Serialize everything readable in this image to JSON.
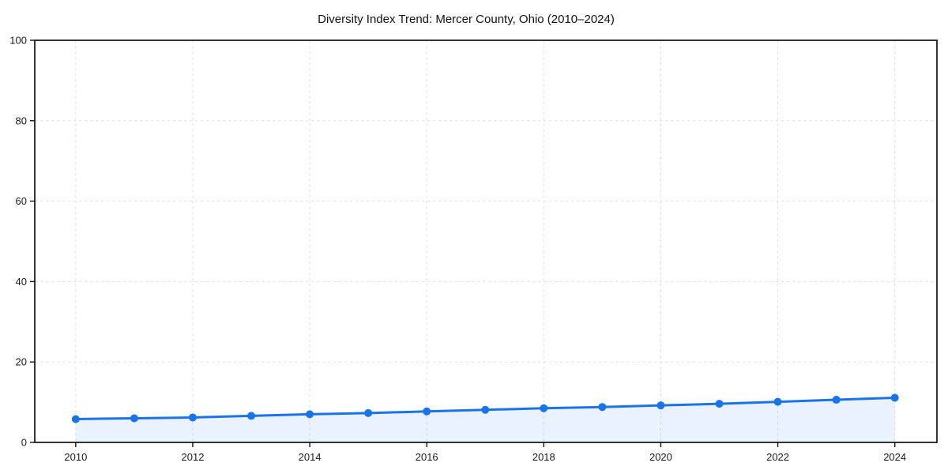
{
  "figure": {
    "background_color": "#ffffff"
  },
  "chart_data": {
    "type": "line",
    "title": "Diversity Index Trend: Mercer County, Ohio (2010–2024)",
    "x": [
      2010,
      2011,
      2012,
      2013,
      2014,
      2015,
      2016,
      2017,
      2018,
      2019,
      2020,
      2021,
      2022,
      2023,
      2024
    ],
    "values": [
      5.8,
      6.0,
      6.2,
      6.6,
      7.0,
      7.3,
      7.7,
      8.1,
      8.5,
      8.8,
      9.2,
      9.6,
      10.1,
      10.6,
      11.1
    ],
    "xlabel": "",
    "ylabel": "",
    "xticks": [
      2010,
      2012,
      2014,
      2016,
      2018,
      2020,
      2022,
      2024
    ],
    "yticks": [
      0,
      20,
      40,
      60,
      80,
      100
    ],
    "xlim": [
      2009.3,
      2024.72
    ],
    "ylim": [
      0,
      100
    ],
    "grid": true,
    "grid_style": "dashed",
    "legend": false,
    "marker": "circle",
    "area_fill": true,
    "colors": {
      "line": "#1a73e8",
      "marker": "#1a73e8",
      "area_fill": "rgba(26,115,232,0.09)",
      "grid": "#e1e1e1",
      "axis": "#111111",
      "text": "#1a1a1a"
    }
  }
}
